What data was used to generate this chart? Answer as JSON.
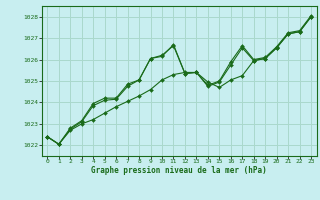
{
  "title": "",
  "xlabel": "Graphe pression niveau de la mer (hPa)",
  "bg_color": "#c8eef0",
  "grid_color": "#aad8cc",
  "line_color": "#1a6b1a",
  "marker_color": "#1a6b1a",
  "xlim": [
    -0.5,
    23.5
  ],
  "ylim": [
    1021.5,
    1028.5
  ],
  "yticks": [
    1022,
    1023,
    1024,
    1025,
    1026,
    1027,
    1028
  ],
  "xticks": [
    0,
    1,
    2,
    3,
    4,
    5,
    6,
    7,
    8,
    9,
    10,
    11,
    12,
    13,
    14,
    15,
    16,
    17,
    18,
    19,
    20,
    21,
    22,
    23
  ],
  "series1_x": [
    0,
    1,
    2,
    3,
    4,
    5,
    6,
    7,
    8,
    9,
    10,
    11,
    12,
    13,
    14,
    15,
    16,
    17,
    18,
    19,
    20,
    21,
    22,
    23
  ],
  "series1_y": [
    1022.4,
    1022.05,
    1022.7,
    1023.0,
    1023.2,
    1023.5,
    1023.8,
    1024.05,
    1024.3,
    1024.6,
    1025.05,
    1025.3,
    1025.4,
    1025.4,
    1024.95,
    1024.7,
    1025.05,
    1025.25,
    1025.95,
    1026.05,
    1026.55,
    1027.2,
    1027.3,
    1028.0
  ],
  "series2_x": [
    0,
    1,
    2,
    3,
    4,
    5,
    6,
    7,
    8,
    9,
    10,
    11,
    12,
    13,
    14,
    15,
    16,
    17,
    18,
    19,
    20,
    21,
    22,
    23
  ],
  "series2_y": [
    1022.4,
    1022.05,
    1022.75,
    1023.1,
    1023.85,
    1024.1,
    1024.15,
    1024.75,
    1025.05,
    1026.05,
    1026.2,
    1026.65,
    1025.35,
    1025.4,
    1024.75,
    1024.95,
    1025.75,
    1026.55,
    1025.95,
    1026.05,
    1026.55,
    1027.2,
    1027.3,
    1028.0
  ],
  "series3_x": [
    0,
    1,
    2,
    3,
    4,
    5,
    6,
    7,
    8,
    9,
    10,
    11,
    12,
    13,
    14,
    15,
    16,
    17,
    18,
    19,
    20,
    21,
    22,
    23
  ],
  "series3_y": [
    1022.4,
    1022.05,
    1022.8,
    1023.15,
    1023.95,
    1024.2,
    1024.2,
    1024.85,
    1025.05,
    1026.05,
    1026.15,
    1026.7,
    1025.35,
    1025.4,
    1024.8,
    1025.0,
    1025.9,
    1026.65,
    1026.0,
    1026.1,
    1026.6,
    1027.25,
    1027.35,
    1028.05
  ]
}
